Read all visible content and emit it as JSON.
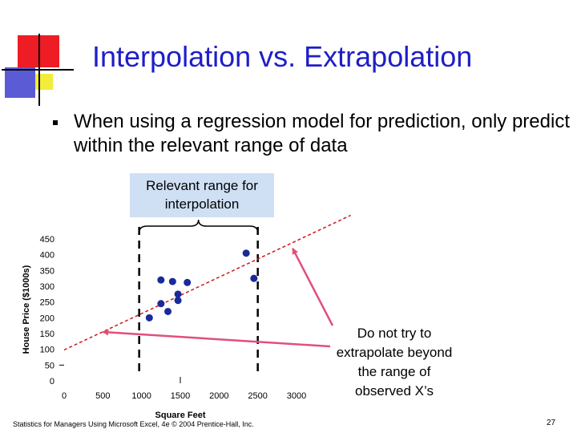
{
  "slide": {
    "title": "Interpolation vs. Extrapolation",
    "bullet": "When using a regression model for prediction, only predict within the relevant range of data",
    "callout_relevant": "Relevant range for interpolation",
    "callout_extrapolate": "Do not try to extrapolate beyond the range of observed X’s",
    "footer_left": "Statistics for Managers Using Microsoft Excel, 4e © 2004 Prentice-Hall, Inc.",
    "page_number": "27"
  },
  "colors": {
    "title": "#1e1ec8",
    "points": "#1a2a9a",
    "regression_line": "#cc1a1a",
    "arrow": "#e0507a",
    "callout_bg": "#cfe0f5"
  },
  "chart_data": {
    "type": "scatter",
    "title": "",
    "xlabel": "Square Feet",
    "ylabel": "House Price ($1000s)",
    "xlim": [
      0,
      3000
    ],
    "ylim": [
      0,
      450
    ],
    "x_ticks": [
      "0",
      "500",
      "1000",
      "1500",
      "2000",
      "2500",
      "3000"
    ],
    "y_ticks": [
      "0",
      "50",
      "100",
      "150",
      "200",
      "250",
      "300",
      "350",
      "400",
      "450"
    ],
    "points": [
      {
        "x": 1100,
        "y": 200
      },
      {
        "x": 1250,
        "y": 245
      },
      {
        "x": 1250,
        "y": 320
      },
      {
        "x": 1340,
        "y": 220
      },
      {
        "x": 1400,
        "y": 315
      },
      {
        "x": 1470,
        "y": 255
      },
      {
        "x": 1470,
        "y": 275
      },
      {
        "x": 1590,
        "y": 312
      },
      {
        "x": 2350,
        "y": 405
      },
      {
        "x": 2450,
        "y": 325
      }
    ],
    "regression_line": {
      "x_start": 0,
      "y_start": 98,
      "x_end": 3700,
      "y_end": 525
    },
    "relevant_range": [
      1000,
      2500
    ]
  }
}
